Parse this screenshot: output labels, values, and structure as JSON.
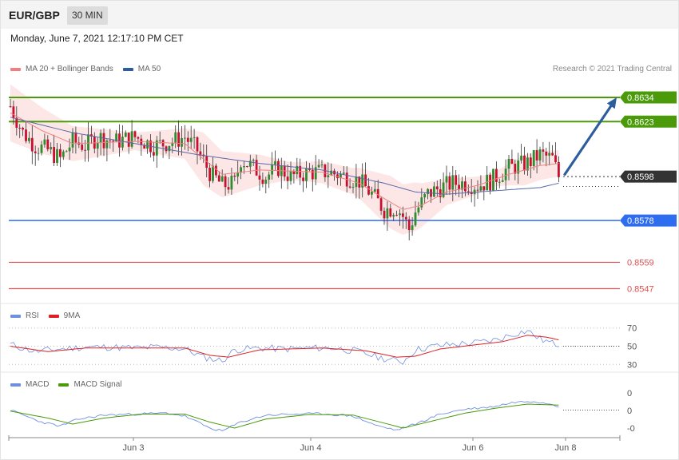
{
  "header": {
    "symbol": "EUR/GBP",
    "timeframe": "30 MIN"
  },
  "datetime": "Monday, June 7, 2021 12:17:10 PM CET",
  "credit": "Research © 2021 Trading Central",
  "colors": {
    "up": "#2e8b2e",
    "down": "#c8102e",
    "ma20": "#f08080",
    "bollinger": "#fde3e3",
    "ma50": "#5a6aa8",
    "resistance": "#4a9a0a",
    "pivot": "#2f6df0",
    "support": "#e05050",
    "arrow": "#2d5d9c",
    "current_tag": "#333333",
    "rsi": "#6f8fe0",
    "rsi_ma": "#e02020",
    "macd": "#6f8fe0",
    "macd_signal": "#4a9a0a"
  },
  "main_legend": [
    {
      "label": "MA 20 + Bollinger Bands",
      "color": "#f08080"
    },
    {
      "label": "MA 50",
      "color": "#2d5d9c"
    }
  ],
  "rsi_legend": [
    {
      "label": "RSI",
      "color": "#6f8fe0"
    },
    {
      "label": "9MA",
      "color": "#e02020"
    }
  ],
  "macd_legend": [
    {
      "label": "MACD",
      "color": "#6f8fe0"
    },
    {
      "label": "MACD Signal",
      "color": "#4a9a0a"
    }
  ],
  "chart_data": [
    {
      "type": "candlestick",
      "price_range": [
        0.8541,
        0.8642
      ],
      "x_labels": [
        "Jun 3",
        "Jun 4",
        "Jun 6",
        "Jun 8"
      ],
      "levels": [
        {
          "value": 0.8634,
          "label": "0.8634",
          "kind": "resistance"
        },
        {
          "value": 0.8623,
          "label": "0.8623",
          "kind": "resistance"
        },
        {
          "value": 0.8598,
          "label": "0.8598",
          "kind": "current"
        },
        {
          "value": 0.8578,
          "label": "0.8578",
          "kind": "pivot"
        },
        {
          "value": 0.8559,
          "label": "0.8559",
          "kind": "support"
        },
        {
          "value": 0.8547,
          "label": "0.8547",
          "kind": "support"
        }
      ],
      "price_path": [
        [
          0,
          0.863
        ],
        [
          4,
          0.8618
        ],
        [
          8,
          0.8612
        ],
        [
          12,
          0.861
        ],
        [
          16,
          0.8606
        ],
        [
          20,
          0.8614
        ],
        [
          24,
          0.8612
        ],
        [
          28,
          0.8616
        ],
        [
          34,
          0.8614
        ],
        [
          40,
          0.8616
        ],
        [
          46,
          0.8612
        ],
        [
          52,
          0.8614
        ],
        [
          56,
          0.8616
        ],
        [
          60,
          0.861
        ],
        [
          64,
          0.86
        ],
        [
          68,
          0.8594
        ],
        [
          72,
          0.8595
        ],
        [
          74,
          0.8606
        ],
        [
          78,
          0.8602
        ],
        [
          82,
          0.8598
        ],
        [
          86,
          0.8602
        ],
        [
          90,
          0.8598
        ],
        [
          96,
          0.86
        ],
        [
          102,
          0.86
        ],
        [
          108,
          0.8598
        ],
        [
          112,
          0.8596
        ],
        [
          116,
          0.859
        ],
        [
          120,
          0.8583
        ],
        [
          124,
          0.8584
        ],
        [
          126,
          0.858
        ],
        [
          128,
          0.8574
        ],
        [
          130,
          0.8582
        ],
        [
          134,
          0.859
        ],
        [
          138,
          0.8593
        ],
        [
          142,
          0.8595
        ],
        [
          146,
          0.8595
        ],
        [
          150,
          0.8594
        ],
        [
          154,
          0.8596
        ],
        [
          160,
          0.8602
        ],
        [
          166,
          0.8604
        ],
        [
          170,
          0.8608
        ],
        [
          174,
          0.8606
        ],
        [
          176,
          0.8598
        ]
      ],
      "ma50_path": [
        [
          0,
          0.8625
        ],
        [
          20,
          0.8618
        ],
        [
          40,
          0.8613
        ],
        [
          60,
          0.8608
        ],
        [
          80,
          0.8604
        ],
        [
          100,
          0.8601
        ],
        [
          120,
          0.8595
        ],
        [
          130,
          0.8591
        ],
        [
          140,
          0.859
        ],
        [
          150,
          0.8591
        ],
        [
          160,
          0.8592
        ],
        [
          170,
          0.8593
        ],
        [
          176,
          0.8595
        ]
      ],
      "ma20_path": [
        [
          0,
          0.8627
        ],
        [
          10,
          0.8619
        ],
        [
          20,
          0.8613
        ],
        [
          40,
          0.8614
        ],
        [
          56,
          0.8613
        ],
        [
          62,
          0.8606
        ],
        [
          68,
          0.8599
        ],
        [
          80,
          0.8601
        ],
        [
          100,
          0.86
        ],
        [
          112,
          0.8595
        ],
        [
          120,
          0.8588
        ],
        [
          126,
          0.8583
        ],
        [
          132,
          0.8585
        ],
        [
          140,
          0.8591
        ],
        [
          150,
          0.8594
        ],
        [
          160,
          0.8599
        ],
        [
          170,
          0.8603
        ],
        [
          176,
          0.8604
        ]
      ],
      "bollinger_width": [
        [
          0,
          0.0013
        ],
        [
          20,
          0.0008
        ],
        [
          40,
          0.0004
        ],
        [
          56,
          0.0007
        ],
        [
          62,
          0.0012
        ],
        [
          70,
          0.001
        ],
        [
          90,
          0.0004
        ],
        [
          110,
          0.0006
        ],
        [
          122,
          0.0012
        ],
        [
          130,
          0.0011
        ],
        [
          140,
          0.0006
        ],
        [
          155,
          0.0003
        ],
        [
          165,
          0.0007
        ],
        [
          176,
          0.0006
        ]
      ],
      "projection": {
        "from": 0.8599,
        "to": 0.8634
      }
    },
    {
      "type": "line",
      "name": "RSI",
      "ylim": [
        25,
        75
      ],
      "ticks": [
        70,
        50,
        30
      ],
      "rsi_path": [
        [
          0,
          52
        ],
        [
          8,
          44
        ],
        [
          16,
          47
        ],
        [
          24,
          49
        ],
        [
          32,
          49
        ],
        [
          40,
          48
        ],
        [
          48,
          49
        ],
        [
          56,
          47
        ],
        [
          62,
          38
        ],
        [
          68,
          34
        ],
        [
          72,
          46
        ],
        [
          80,
          48
        ],
        [
          88,
          47
        ],
        [
          96,
          48
        ],
        [
          104,
          48
        ],
        [
          112,
          44
        ],
        [
          118,
          38
        ],
        [
          122,
          35
        ],
        [
          126,
          33
        ],
        [
          130,
          46
        ],
        [
          136,
          50
        ],
        [
          142,
          52
        ],
        [
          150,
          54
        ],
        [
          156,
          57
        ],
        [
          162,
          64
        ],
        [
          166,
          67
        ],
        [
          170,
          58
        ],
        [
          174,
          53
        ],
        [
          176,
          52
        ]
      ],
      "rsi_ma_path": [
        [
          0,
          50
        ],
        [
          12,
          44
        ],
        [
          24,
          48
        ],
        [
          40,
          48
        ],
        [
          56,
          48
        ],
        [
          64,
          40
        ],
        [
          70,
          38
        ],
        [
          80,
          46
        ],
        [
          100,
          48
        ],
        [
          114,
          45
        ],
        [
          124,
          38
        ],
        [
          130,
          39
        ],
        [
          138,
          47
        ],
        [
          148,
          51
        ],
        [
          158,
          55
        ],
        [
          166,
          62
        ],
        [
          172,
          60
        ],
        [
          176,
          57
        ]
      ]
    },
    {
      "type": "line",
      "name": "MACD",
      "ylim": [
        -1.2,
        1.2
      ],
      "ticks": [
        "0",
        "0",
        "-0"
      ],
      "macd_path": [
        [
          0,
          0.1
        ],
        [
          10,
          -0.5
        ],
        [
          16,
          -0.7
        ],
        [
          22,
          -0.35
        ],
        [
          30,
          -0.15
        ],
        [
          40,
          -0.1
        ],
        [
          50,
          -0.05
        ],
        [
          56,
          -0.2
        ],
        [
          64,
          -0.8
        ],
        [
          68,
          -0.95
        ],
        [
          74,
          -0.5
        ],
        [
          82,
          -0.15
        ],
        [
          92,
          -0.1
        ],
        [
          100,
          -0.08
        ],
        [
          110,
          -0.2
        ],
        [
          118,
          -0.7
        ],
        [
          124,
          -0.9
        ],
        [
          130,
          -0.6
        ],
        [
          138,
          -0.1
        ],
        [
          146,
          0.15
        ],
        [
          154,
          0.25
        ],
        [
          162,
          0.5
        ],
        [
          168,
          0.55
        ],
        [
          174,
          0.4
        ],
        [
          176,
          0.3
        ]
      ],
      "macd_signal_path": [
        [
          0,
          0.05
        ],
        [
          12,
          -0.3
        ],
        [
          20,
          -0.6
        ],
        [
          30,
          -0.3
        ],
        [
          42,
          -0.1
        ],
        [
          56,
          -0.1
        ],
        [
          64,
          -0.5
        ],
        [
          72,
          -0.8
        ],
        [
          82,
          -0.35
        ],
        [
          96,
          -0.12
        ],
        [
          110,
          -0.15
        ],
        [
          120,
          -0.55
        ],
        [
          126,
          -0.8
        ],
        [
          134,
          -0.5
        ],
        [
          146,
          -0.05
        ],
        [
          156,
          0.2
        ],
        [
          166,
          0.4
        ],
        [
          176,
          0.35
        ]
      ]
    }
  ]
}
